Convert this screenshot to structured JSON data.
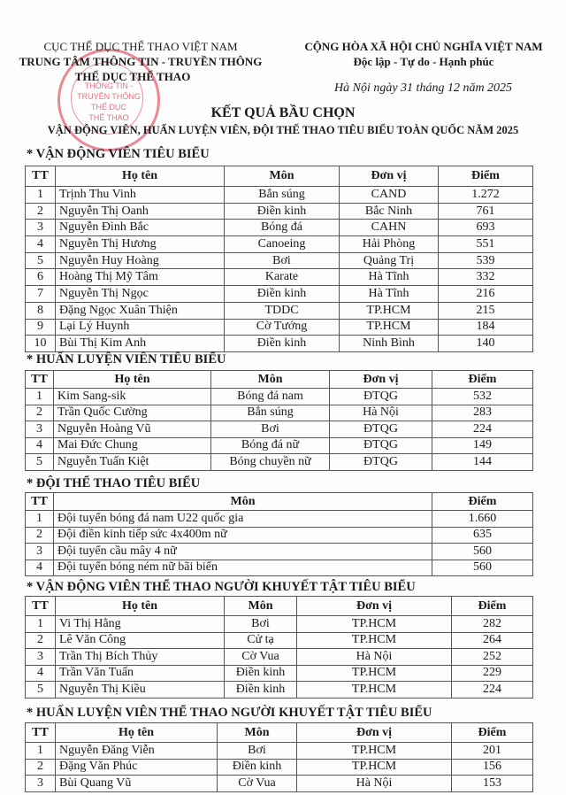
{
  "header": {
    "agency_line1": "CỤC THỂ DỤC THỂ THAO VIỆT NAM",
    "agency_line2": "TRUNG TÂM THÔNG TIN - TRUYỀN THÔNG",
    "agency_line3": "THỂ DỤC THỂ THAO",
    "nation": "CỘNG HÒA XÃ HỘI CHỦ NGHĨA VIỆT NAM",
    "motto": "Độc lập - Tự do - Hạnh phúc",
    "date": "Hà Nội ngày 31 tháng 12 năm 2025",
    "stamp_text": "TRUNG TÂM THÔNG TIN - TRUYỀN THÔNG THỂ DỤC THỂ THAO",
    "stamp_color": "#d9324b"
  },
  "title": "KẾT QUẢ BẦU CHỌN",
  "subtitle": "VẬN ĐỘNG VIÊN, HUẤN LUYỆN VIÊN, ĐỘI THỂ THAO TIÊU BIỂU TOÀN QUỐC NĂM 2025",
  "sections": [
    {
      "heading": "* VẬN ĐỘNG VIÊN TIÊU BIỂU",
      "columns": [
        "TT",
        "Họ tên",
        "Môn",
        "Đơn vị",
        "Điểm"
      ],
      "rows": [
        [
          "1",
          "Trịnh Thu Vinh",
          "Bắn súng",
          "CAND",
          "1.272"
        ],
        [
          "2",
          "Nguyễn Thị Oanh",
          "Điền kinh",
          "Bắc Ninh",
          "761"
        ],
        [
          "3",
          "Nguyễn Đình Bắc",
          "Bóng đá",
          "CAHN",
          "693"
        ],
        [
          "4",
          "Nguyễn Thị Hương",
          "Canoeing",
          "Hải Phòng",
          "551"
        ],
        [
          "5",
          "Nguyễn Huy Hoàng",
          "Bơi",
          "Quảng Trị",
          "539"
        ],
        [
          "6",
          "Hoàng Thị Mỹ Tâm",
          "Karate",
          "Hà Tĩnh",
          "332"
        ],
        [
          "7",
          "Nguyễn Thị Ngọc",
          "Điền kinh",
          "Hà Tĩnh",
          "216"
        ],
        [
          "8",
          "Đặng Ngọc Xuân Thiện",
          "TDDC",
          "TP.HCM",
          "215"
        ],
        [
          "9",
          "Lại Lý Huynh",
          "Cờ Tướng",
          "TP.HCM",
          "184"
        ],
        [
          "10",
          "Bùi Thị Kim Anh",
          "Điền kinh",
          "Ninh Bình",
          "140"
        ]
      ]
    },
    {
      "heading": "* HUẤN LUYỆN VIÊN TIÊU BIỂU",
      "columns": [
        "TT",
        "Họ tên",
        "Môn",
        "Đơn vị",
        "Điểm"
      ],
      "rows": [
        [
          "1",
          "Kim Sang-sik",
          "Bóng đá nam",
          "ĐTQG",
          "532"
        ],
        [
          "2",
          "Trần Quốc Cường",
          "Bắn súng",
          "Hà Nội",
          "283"
        ],
        [
          "3",
          "Nguyễn Hoàng Vũ",
          "Bơi",
          "ĐTQG",
          "224"
        ],
        [
          "4",
          "Mai Đức Chung",
          "Bóng đá nữ",
          "ĐTQG",
          "149"
        ],
        [
          "5",
          "Nguyễn Tuấn Kiệt",
          "Bóng chuyền nữ",
          "ĐTQG",
          "144"
        ]
      ]
    },
    {
      "heading": "* ĐỘI THỂ THAO TIÊU BIỂU",
      "columns": [
        "TT",
        "Môn",
        "Điểm"
      ],
      "rows": [
        [
          "1",
          "Đội tuyển bóng đá nam U22 quốc gia",
          "1.660"
        ],
        [
          "2",
          "Đội điền kinh tiếp sức 4x400m nữ",
          "635"
        ],
        [
          "3",
          "Đội tuyển cầu mây 4 nữ",
          "560"
        ],
        [
          "4",
          "Đội tuyển bóng ném nữ bãi biển",
          "560"
        ]
      ]
    },
    {
      "heading": "* VẬN ĐỘNG VIÊN THỂ THAO NGƯỜI KHUYẾT TẬT TIÊU BIỂU",
      "columns": [
        "TT",
        "Họ tên",
        "Môn",
        "Đơn vị",
        "Điểm"
      ],
      "rows": [
        [
          "1",
          "Vi Thị Hằng",
          "Bơi",
          "TP.HCM",
          "282"
        ],
        [
          "2",
          "Lê Văn Công",
          "Cử tạ",
          "TP.HCM",
          "264"
        ],
        [
          "3",
          "Trần Thị Bích Thủy",
          "Cờ Vua",
          "Hà Nội",
          "252"
        ],
        [
          "4",
          "Trần Văn Tuấn",
          "Điền kinh",
          "TP.HCM",
          "229"
        ],
        [
          "5",
          "Nguyễn Thị Kiều",
          "Điền kinh",
          "TP.HCM",
          "224"
        ]
      ]
    },
    {
      "heading": "* HUẤN LUYỆN VIÊN THỂ THAO NGƯỜI KHUYẾT TẬT TIÊU BIỂU",
      "columns": [
        "TT",
        "Họ tên",
        "Môn",
        "Đơn vị",
        "Điểm"
      ],
      "rows": [
        [
          "1",
          "Nguyễn Đăng Viễn",
          "Bơi",
          "TP.HCM",
          "201"
        ],
        [
          "2",
          "Đặng Văn Phúc",
          "Điền kinh",
          "TP.HCM",
          "156"
        ],
        [
          "3",
          "Bùi Quang Vũ",
          "Cờ Vua",
          "Hà Nội",
          "153"
        ]
      ]
    }
  ]
}
